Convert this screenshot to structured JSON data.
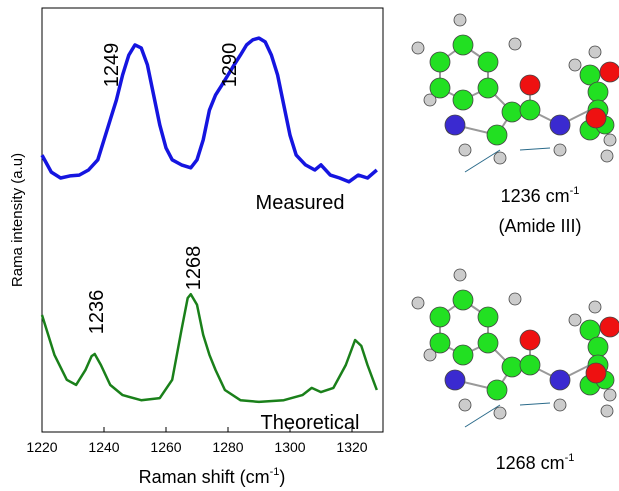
{
  "chart_data": {
    "type": "line",
    "y_label": "Rama intensity (a.u)",
    "x_label": [
      "Raman shift (cm",
      "-1",
      ")"
    ],
    "xlim": [
      1220,
      1330
    ],
    "xticks": [
      1220,
      1240,
      1260,
      1280,
      1300,
      1320
    ],
    "ylim": [
      0,
      100
    ],
    "series": [
      {
        "name": "Measured",
        "color": "#1515e0",
        "x": [
          1220,
          1223,
          1226,
          1229,
          1232,
          1235,
          1238,
          1240,
          1242,
          1244,
          1246,
          1248,
          1250,
          1252,
          1254,
          1256,
          1258,
          1260,
          1262,
          1265,
          1268,
          1270,
          1272,
          1274,
          1276,
          1278,
          1280,
          1282,
          1284,
          1286,
          1288,
          1290,
          1292,
          1294,
          1296,
          1298,
          1300,
          1302,
          1305,
          1308,
          1310,
          1313,
          1316,
          1319,
          1322,
          1325,
          1328
        ],
        "values": [
          65.3,
          61.3,
          59.9,
          60.4,
          60.6,
          61.8,
          64.2,
          68.9,
          73.6,
          78.3,
          84.2,
          88.9,
          91.3,
          90.6,
          86.6,
          79.5,
          72.4,
          67.0,
          64.2,
          63.0,
          62.3,
          64.2,
          68.9,
          75.9,
          79.5,
          81.8,
          84.2,
          86.6,
          88.9,
          91.3,
          92.5,
          92.9,
          92.0,
          88.9,
          84.2,
          77.1,
          70.0,
          65.3,
          63.0,
          61.8,
          63.0,
          60.6,
          59.9,
          59.0,
          60.6,
          59.9,
          61.8
        ]
      },
      {
        "name": "Theoretical",
        "color": "#1a801a",
        "x": [
          1220,
          1224,
          1228,
          1231,
          1234,
          1236,
          1237,
          1239,
          1242,
          1246,
          1252,
          1258,
          1262,
          1265,
          1267,
          1268,
          1270,
          1272,
          1274,
          1276,
          1279,
          1284,
          1290,
          1298,
          1304,
          1307,
          1310,
          1314,
          1318,
          1321,
          1323,
          1325,
          1328
        ],
        "values": [
          27.6,
          18.2,
          12.3,
          11.1,
          14.6,
          17.9,
          18.4,
          15.8,
          11.1,
          8.7,
          7.5,
          8.0,
          12.3,
          24.1,
          31.6,
          32.5,
          30.0,
          22.9,
          18.2,
          14.6,
          9.9,
          7.5,
          7.1,
          7.5,
          8.7,
          10.4,
          9.4,
          10.4,
          15.8,
          21.7,
          20.3,
          15.8,
          9.9
        ]
      }
    ],
    "annotations": [
      "1249",
      "1290",
      "1236",
      "1268"
    ],
    "mode_labels": [
      {
        "text": "1236 cm",
        "sup": "-1",
        "note": "(Amide III)"
      },
      {
        "text": "1268 cm",
        "sup": "-1"
      }
    ]
  }
}
